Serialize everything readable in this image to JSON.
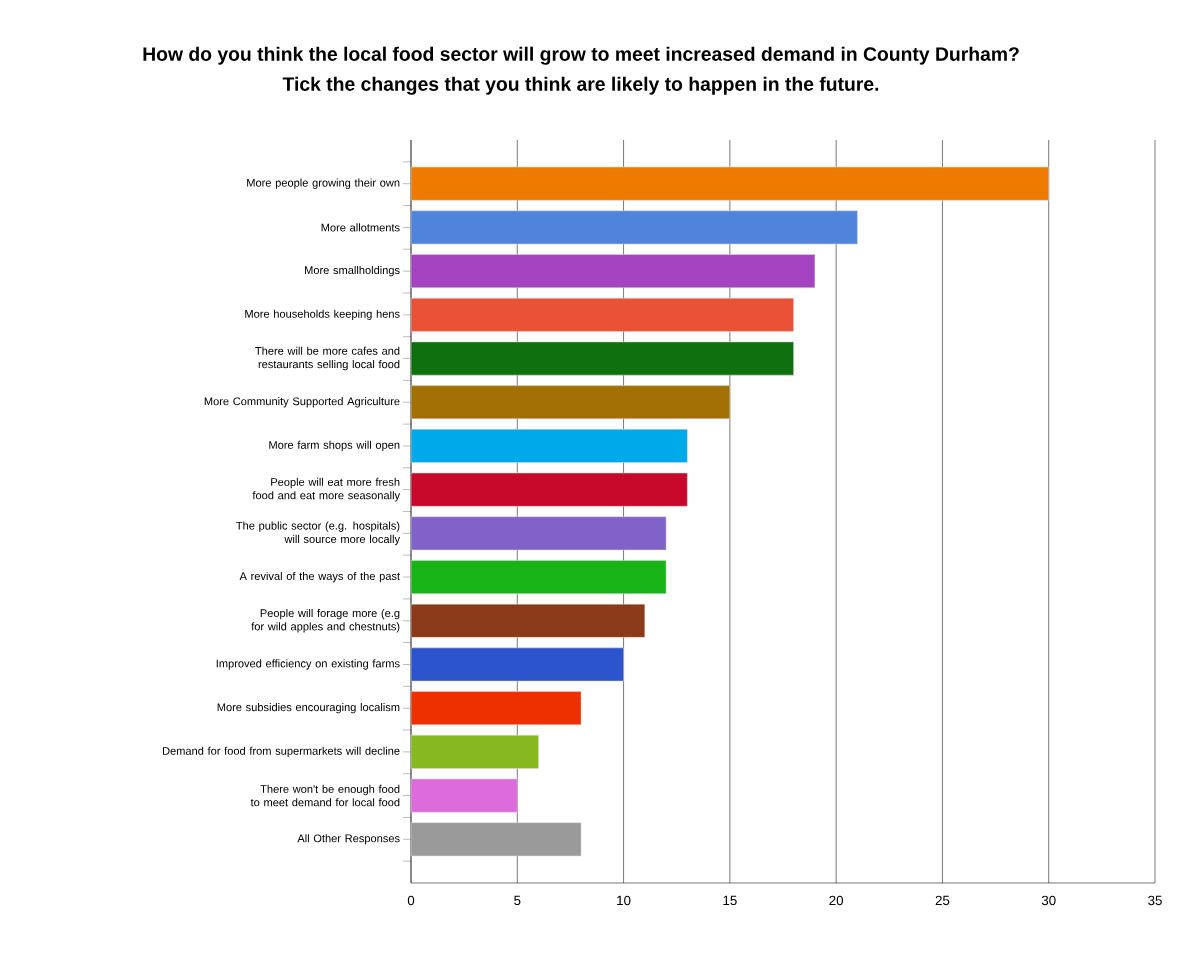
{
  "chart_data": {
    "type": "bar",
    "orientation": "horizontal",
    "title": "How do you think the local food sector will grow to meet increased demand in County Durham?",
    "subtitle": "Tick the changes that you think are likely to happen in the future.",
    "categories": [
      "More people growing their own",
      "More allotments",
      "More smallholdings",
      "More households keeping hens",
      "There will be more cafes and restaurants selling local food",
      "More Community Supported Agriculture",
      "More farm shops will open",
      "People will eat more fresh food and eat more seasonally",
      "The public sector (e.g. hospitals) will source more locally",
      "A revival of the ways of the past",
      "People will forage more (e.g for wild apples and chestnuts)",
      "Improved efficiency on existing farms",
      "More subsidies encouraging localism",
      "Demand for food from supermarkets will decline",
      "There won't be enough food to meet demand for local food",
      "All Other Responses"
    ],
    "values": [
      30,
      21,
      19,
      18,
      18,
      15,
      13,
      13,
      12,
      12,
      11,
      10,
      8,
      6,
      5,
      8
    ],
    "colors": [
      "#ee7a00",
      "#5083dc",
      "#a444c0",
      "#ea5238",
      "#0f7010",
      "#a37006",
      "#00aaea",
      "#c8082a",
      "#8062c8",
      "#18b418",
      "#8a3a18",
      "#2c54cc",
      "#ee3000",
      "#86b820",
      "#dc6cdc",
      "#9a9a9a"
    ],
    "xlim": [
      0,
      35
    ],
    "xticks": [
      0,
      5,
      10,
      15,
      20,
      25,
      30,
      35
    ],
    "grid": "x"
  }
}
